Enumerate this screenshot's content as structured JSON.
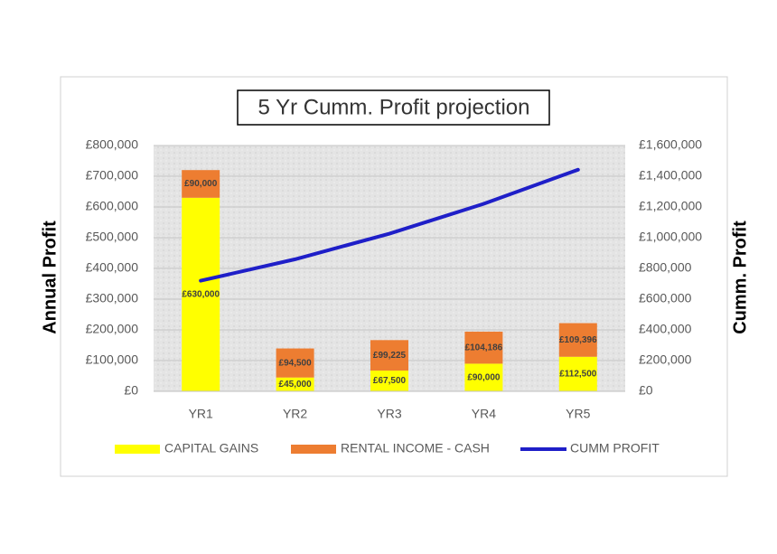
{
  "chart_data": {
    "type": "bar",
    "stacked": true,
    "title": "5 Yr Cumm. Profit projection",
    "ylabel": "Annual Profit",
    "y2label": "Cumm. Profit",
    "categories": [
      "YR1",
      "YR2",
      "YR3",
      "YR4",
      "YR5"
    ],
    "series": [
      {
        "name": "CAPITAL GAINS",
        "color": "#ffff00",
        "values": [
          630000,
          45000,
          67500,
          90000,
          112500
        ],
        "value_labels": [
          "£630,000",
          "£45,000",
          "£67,500",
          "£90,000",
          "£112,500"
        ]
      },
      {
        "name": "RENTAL INCOME - CASH",
        "color": "#ed7d31",
        "values": [
          90000,
          94500,
          99225,
          104186,
          109396
        ],
        "value_labels": [
          "£90,000",
          "£94,500",
          "£99,225",
          "£104,186",
          "£109,396"
        ]
      },
      {
        "name": "CUMM PROFIT",
        "type": "line",
        "axis": "y2",
        "color": "#1f1fc8",
        "values": [
          720000,
          859500,
          1026225,
          1220411,
          1442307
        ]
      }
    ],
    "ylim": [
      0,
      800000
    ],
    "yticks": [
      {
        "value": 0,
        "label": "£0"
      },
      {
        "value": 100000,
        "label": "£100,000"
      },
      {
        "value": 200000,
        "label": "£200,000"
      },
      {
        "value": 300000,
        "label": "£300,000"
      },
      {
        "value": 400000,
        "label": "£400,000"
      },
      {
        "value": 500000,
        "label": "£500,000"
      },
      {
        "value": 600000,
        "label": "£600,000"
      },
      {
        "value": 700000,
        "label": "£700,000"
      },
      {
        "value": 800000,
        "label": "£800,000"
      }
    ],
    "y2lim": [
      0,
      1600000
    ],
    "y2ticks": [
      {
        "value": 0,
        "label": "£0"
      },
      {
        "value": 200000,
        "label": "£200,000"
      },
      {
        "value": 400000,
        "label": "£400,000"
      },
      {
        "value": 600000,
        "label": "£600,000"
      },
      {
        "value": 800000,
        "label": "£800,000"
      },
      {
        "value": 1000000,
        "label": "£1,000,000"
      },
      {
        "value": 1200000,
        "label": "£1,200,000"
      },
      {
        "value": 1400000,
        "label": "£1,400,000"
      },
      {
        "value": 1600000,
        "label": "£1,600,000"
      }
    ],
    "grid": true,
    "legend": "bottom"
  }
}
